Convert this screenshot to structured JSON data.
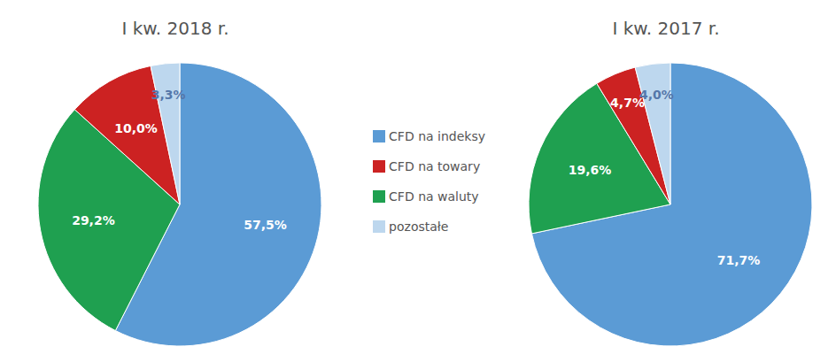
{
  "chart_data": [
    {
      "type": "pie",
      "title": "I kw. 2018 r.",
      "categories": [
        "CFD na indeksy",
        "CFD na waluty",
        "CFD na towary",
        "pozostałe"
      ],
      "values": [
        57.5,
        29.2,
        10.0,
        3.3
      ],
      "value_labels": [
        "57,5%",
        "29,2%",
        "10,0%",
        "3,3%"
      ],
      "colors": [
        "#5B9BD5",
        "#1FA050",
        "#CC2222",
        "#BDD7EE"
      ],
      "data_labels": true,
      "legend": "right"
    },
    {
      "type": "pie",
      "title": "I kw. 2017 r.",
      "categories": [
        "CFD na indeksy",
        "CFD na waluty",
        "CFD na towary",
        "pozostałe"
      ],
      "values": [
        71.7,
        19.6,
        4.7,
        4.0
      ],
      "value_labels": [
        "71,7%",
        "19,6%",
        "4,7%",
        "4,0%"
      ],
      "colors": [
        "#5B9BD5",
        "#1FA050",
        "#CC2222",
        "#BDD7EE"
      ],
      "data_labels": true
    }
  ]
}
